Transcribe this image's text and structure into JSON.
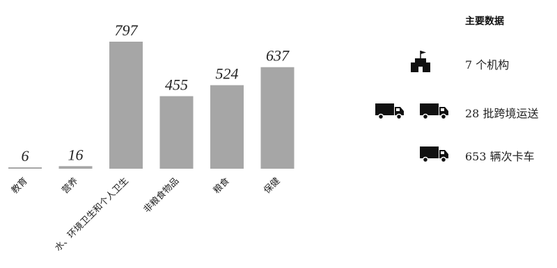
{
  "chart_data": {
    "type": "bar",
    "categories": [
      "教育",
      "营养",
      "水、环境卫生和个人卫生",
      "非粮食物品",
      "粮食",
      "保健"
    ],
    "values": [
      6,
      16,
      797,
      455,
      524,
      637
    ],
    "ylim": [
      0,
      797
    ],
    "colors": {
      "bar": "#a6a6a6"
    }
  },
  "key_stats": {
    "title": "主要数据",
    "items": [
      {
        "icon": "building-icon",
        "icon_count": 1,
        "text": "7 个机构"
      },
      {
        "icon": "truck-icon",
        "icon_count": 2,
        "text": "28 批跨境运送"
      },
      {
        "icon": "truck-icon",
        "icon_count": 1,
        "text": "653 辆次卡车"
      }
    ]
  }
}
